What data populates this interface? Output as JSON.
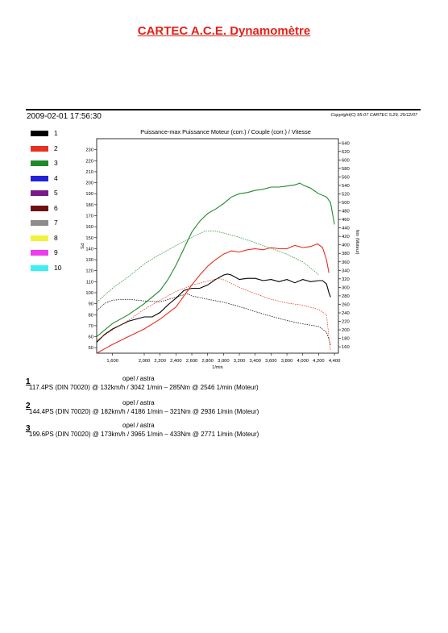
{
  "header": {
    "title": "CARTEC A.C.E. Dynamomètre",
    "timestamp": "2009-02-01 17:56:30",
    "copyright": "Copyright(C) 95-07 CARTEC 5.29, 25/12/07"
  },
  "legend": [
    {
      "label": "1",
      "color": "#000000"
    },
    {
      "label": "2",
      "color": "#e8301e"
    },
    {
      "label": "3",
      "color": "#1f8a2a"
    },
    {
      "label": "4",
      "color": "#2222d8"
    },
    {
      "label": "5",
      "color": "#7a1a8a"
    },
    {
      "label": "6",
      "color": "#6e1010"
    },
    {
      "label": "7",
      "color": "#8c8c8c"
    },
    {
      "label": "8",
      "color": "#f2f23a"
    },
    {
      "label": "9",
      "color": "#f03cf0"
    },
    {
      "label": "10",
      "color": "#3cf0f0"
    }
  ],
  "chart_data": {
    "type": "line",
    "title": "Puissance-max Puissance Moteur (corr.) / Couple (corr.) / Vitesse",
    "xlabel": "1/min",
    "ylabel_left": "PS",
    "ylabel_right": "Nm (Moteur)",
    "xlim": [
      1400,
      4450
    ],
    "ylim_left": [
      45,
      240
    ],
    "ylim_right": [
      145,
      650
    ],
    "x_ticks": [
      "1,600",
      "2,000",
      "2,200",
      "2,400",
      "2,600",
      "2,800",
      "3,000",
      "3,200",
      "3,400",
      "3,600",
      "3,800",
      "4,000",
      "4,200",
      "4,400"
    ],
    "x_tick_values": [
      1600,
      2000,
      2200,
      2400,
      2600,
      2800,
      3000,
      3200,
      3400,
      3600,
      3800,
      4000,
      4200,
      4400
    ],
    "y_left_ticks": [
      "50",
      "60",
      "70",
      "80",
      "90",
      "100",
      "110",
      "120",
      "130",
      "140",
      "150",
      "160",
      "170",
      "180",
      "190",
      "200",
      "210",
      "220",
      "230"
    ],
    "y_right_ticks": [
      "160",
      "180",
      "200",
      "220",
      "240",
      "260",
      "280",
      "300",
      "320",
      "340",
      "360",
      "380",
      "400",
      "420",
      "440",
      "460",
      "480",
      "500",
      "520",
      "540",
      "560",
      "580",
      "600",
      "620",
      "640"
    ],
    "grid": false,
    "series": [
      {
        "name": "1",
        "kind": "power",
        "color": "#000000",
        "x": [
          1400,
          1500,
          1600,
          1800,
          2000,
          2100,
          2200,
          2300,
          2400,
          2500,
          2600,
          2700,
          2800,
          2900,
          3000,
          3050,
          3100,
          3200,
          3300,
          3400,
          3500,
          3600,
          3700,
          3800,
          3900,
          4000,
          4100,
          4200,
          4250,
          4300,
          4330,
          4350
        ],
        "y": [
          55,
          62,
          67,
          74,
          78,
          78,
          82,
          89,
          95,
          102,
          104,
          104,
          107,
          112,
          116,
          117,
          116,
          112,
          113,
          113,
          111,
          112,
          110,
          112,
          109,
          112,
          110,
          111,
          111,
          108,
          100,
          96
        ]
      },
      {
        "name": "1",
        "kind": "torque",
        "color": "#000000",
        "x": [
          1400,
          1500,
          1600,
          1800,
          2000,
          2200,
          2400,
          2546,
          2600,
          2800,
          3000,
          3200,
          3400,
          3600,
          3800,
          4000,
          4200,
          4300,
          4350
        ],
        "y": [
          245,
          262,
          270,
          272,
          268,
          266,
          277,
          285,
          280,
          272,
          265,
          255,
          243,
          232,
          222,
          214,
          208,
          195,
          165
        ]
      },
      {
        "name": "2",
        "kind": "power",
        "color": "#e8301e",
        "x": [
          1400,
          1600,
          1800,
          2000,
          2200,
          2400,
          2500,
          2600,
          2700,
          2800,
          2900,
          3000,
          3100,
          3200,
          3300,
          3400,
          3500,
          3600,
          3700,
          3800,
          3900,
          4000,
          4100,
          4186,
          4250,
          4300,
          4330
        ],
        "y": [
          45,
          53,
          60,
          67,
          76,
          87,
          97,
          107,
          116,
          124,
          130,
          135,
          138,
          137,
          139,
          140,
          139,
          141,
          140,
          140,
          143,
          141,
          142,
          144.4,
          141,
          130,
          118
        ]
      },
      {
        "name": "2",
        "kind": "torque",
        "color": "#e8301e",
        "x": [
          1400,
          1600,
          1800,
          2000,
          2200,
          2400,
          2600,
          2800,
          2936,
          3000,
          3200,
          3400,
          3600,
          3800,
          4000,
          4200,
          4300,
          4350
        ],
        "y": [
          175,
          200,
          222,
          248,
          270,
          290,
          305,
          315,
          321,
          318,
          300,
          285,
          272,
          263,
          258,
          248,
          235,
          150
        ]
      },
      {
        "name": "3",
        "kind": "power",
        "color": "#1f8a2a",
        "x": [
          1400,
          1600,
          1800,
          2000,
          2200,
          2300,
          2400,
          2500,
          2600,
          2700,
          2800,
          2900,
          3000,
          3100,
          3200,
          3300,
          3400,
          3500,
          3600,
          3700,
          3800,
          3900,
          3965,
          4000,
          4100,
          4200,
          4300,
          4350,
          4400
        ],
        "y": [
          60,
          72,
          80,
          90,
          102,
          112,
          125,
          140,
          155,
          165,
          172,
          176,
          181,
          187,
          190,
          191,
          193,
          194,
          196,
          196,
          197,
          198,
          199.6,
          198,
          195,
          190,
          187,
          182,
          162
        ]
      },
      {
        "name": "3",
        "kind": "torque",
        "color": "#1f8a2a",
        "x": [
          1400,
          1600,
          1800,
          2000,
          2200,
          2400,
          2600,
          2771,
          2900,
          3000,
          3200,
          3400,
          3600,
          3800,
          4000,
          4100,
          4200
        ],
        "y": [
          265,
          298,
          325,
          355,
          378,
          398,
          418,
          433,
          432,
          428,
          418,
          405,
          392,
          378,
          360,
          345,
          330
        ]
      }
    ]
  },
  "results": [
    {
      "num": "1",
      "vehicle": "opel / astra",
      "summary": "117.4PS (DIN 70020) @ 132km/h / 3042 1/min – 285Nm @ 2546 1/min (Moteur)"
    },
    {
      "num": "2",
      "vehicle": "opel / astra",
      "summary": "144.4PS (DIN 70020) @ 182km/h / 4186 1/min – 321Nm @ 2936 1/min (Moteur)"
    },
    {
      "num": "3",
      "vehicle": "opel / astra",
      "summary": "199.6PS (DIN 70020) @ 173km/h / 3965 1/min – 433Nm @ 2771 1/min (Moteur)"
    }
  ]
}
